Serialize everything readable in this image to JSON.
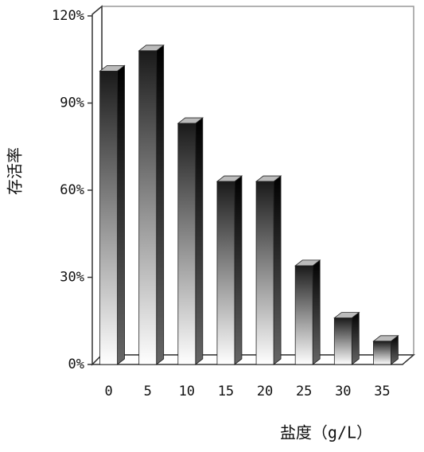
{
  "chart_data": {
    "type": "bar",
    "categories": [
      "0",
      "5",
      "10",
      "15",
      "20",
      "25",
      "30",
      "35"
    ],
    "values": [
      101,
      108,
      83,
      63,
      63,
      34,
      16,
      8
    ],
    "ylim": [
      0,
      120
    ],
    "yticks": [
      {
        "value": 0,
        "label": "0%"
      },
      {
        "value": 30,
        "label": "30%"
      },
      {
        "value": 60,
        "label": "60%"
      },
      {
        "value": 90,
        "label": "90%"
      },
      {
        "value": 120,
        "label": "120%"
      }
    ],
    "y_label": "存活率",
    "x_label": "盐度（g/L）"
  }
}
